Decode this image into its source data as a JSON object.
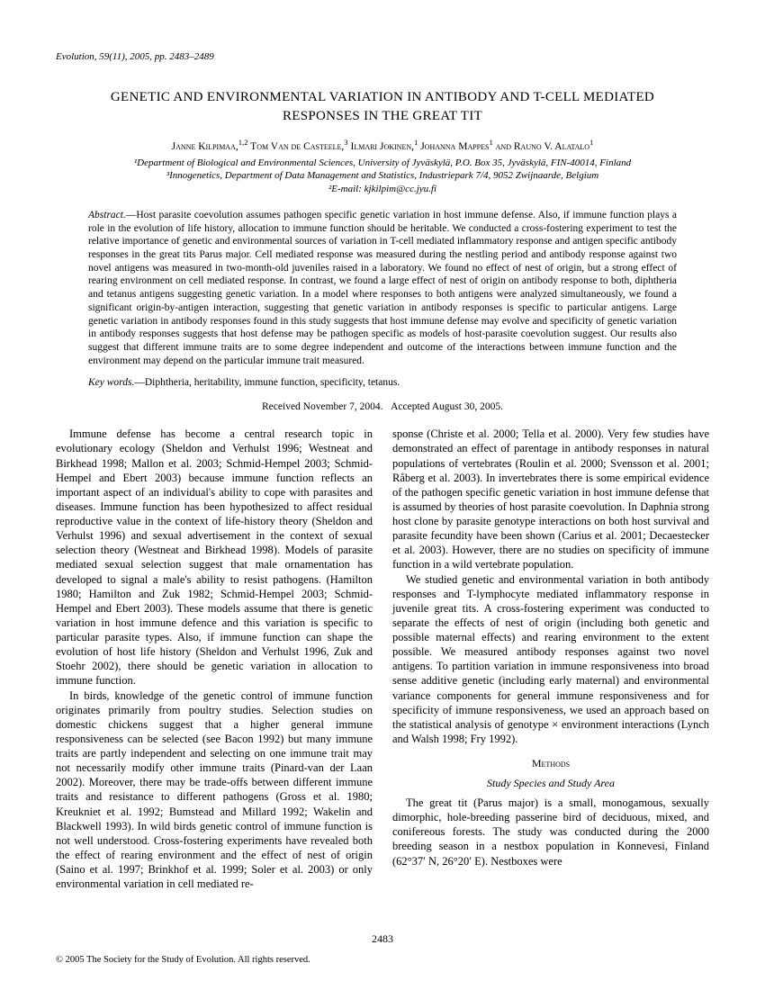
{
  "journal_citation": "Evolution, 59(11), 2005, pp. 2483–2489",
  "title": "GENETIC AND ENVIRONMENTAL VARIATION IN ANTIBODY AND T-CELL MEDIATED RESPONSES IN THE GREAT TIT",
  "authors_html": "J<span class='sc'>anne</span> K<span class='sc'>ilpimaa</span>,<sup>1,2</sup> T<span class='sc'>om</span> V<span class='sc'>an de</span> C<span class='sc'>asteele</span>,<sup>3</sup> I<span class='sc'>lmari</span> J<span class='sc'>okinen</span>,<sup>1</sup> J<span class='sc'>ohanna</span> M<span class='sc'>appes</span><sup>1</sup> <span class='sc'>and</span> R<span class='sc'>auno</span> V. A<span class='sc'>latalo</span><sup>1</sup>",
  "affil1": "¹Department of Biological and Environmental Sciences, University of Jyväskylä, P.O. Box 35, Jyväskylä, FIN-40014, Finland",
  "affil2": "³Innogenetics, Department of Data Management and Statistics, Industriepark 7/4, 9052 Zwijnaarde, Belgium",
  "affil3": "²E-mail: kjkilpim@cc.jyu.fi",
  "abstract_lead": "Abstract.",
  "abstract_body": "—Host parasite coevolution assumes pathogen specific genetic variation in host immune defense. Also, if immune function plays a role in the evolution of life history, allocation to immune function should be heritable. We conducted a cross-fostering experiment to test the relative importance of genetic and environmental sources of variation in T-cell mediated inflammatory response and antigen specific antibody responses in the great tits Parus major. Cell mediated response was measured during the nestling period and antibody response against two novel antigens was measured in two-month-old juveniles raised in a laboratory. We found no effect of nest of origin, but a strong effect of rearing environment on cell mediated response. In contrast, we found a large effect of nest of origin on antibody response to both, diphtheria and tetanus antigens suggesting genetic variation. In a model where responses to both antigens were analyzed simultaneously, we found a significant origin-by-antigen interaction, suggesting that genetic variation in antibody responses is specific to particular antigens. Large genetic variation in antibody responses found in this study suggests that host immune defense may evolve and specificity of genetic variation in antibody responses suggests that host defense may be pathogen specific as models of host-parasite coevolution suggest. Our results also suggest that different immune traits are to some degree independent and outcome of the interactions between immune function and the environment may depend on the particular immune trait measured.",
  "keywords_lead": "Key words.",
  "keywords_body": "—Diphtheria, heritability, immune function, specificity, tetanus.",
  "received": "Received November 7, 2004.",
  "accepted": "Accepted August 30, 2005.",
  "body": {
    "p1": "Immune defense has become a central research topic in evolutionary ecology (Sheldon and Verhulst 1996; Westneat and Birkhead 1998; Mallon et al. 2003; Schmid-Hempel 2003; Schmid-Hempel and Ebert 2003) because immune function reflects an important aspect of an individual's ability to cope with parasites and diseases. Immune function has been hypothesized to affect residual reproductive value in the context of life-history theory (Sheldon and Verhulst 1996) and sexual advertisement in the context of sexual selection theory (Westneat and Birkhead 1998). Models of parasite mediated sexual selection suggest that male ornamentation has developed to signal a male's ability to resist pathogens. (Hamilton 1980; Hamilton and Zuk 1982; Schmid-Hempel 2003; Schmid-Hempel and Ebert 2003). These models assume that there is genetic variation in host immune defence and this variation is specific to particular parasite types. Also, if immune function can shape the evolution of host life history (Sheldon and Verhulst 1996, Zuk and Stoehr 2002), there should be genetic variation in allocation to immune function.",
    "p2": "In birds, knowledge of the genetic control of immune function originates primarily from poultry studies. Selection studies on domestic chickens suggest that a higher general immune responsiveness can be selected (see Bacon 1992) but many immune traits are partly independent and selecting on one immune trait may not necessarily modify other immune traits (Pinard-van der Laan 2002). Moreover, there may be trade-offs between different immune traits and resistance to different pathogens (Gross et al. 1980; Kreukniet et al. 1992; Bumstead and Millard 1992; Wakelin and Blackwell 1993). In wild birds genetic control of immune function is not well understood. Cross-fostering experiments have revealed both the effect of rearing environment and the effect of nest of origin (Saino et al. 1997; Brinkhof et al. 1999; Soler et al. 2003) or only environmental variation in cell mediated re-",
    "p3": "sponse (Christe et al. 2000; Tella et al. 2000). Very few studies have demonstrated an effect of parentage in antibody responses in natural populations of vertebrates (Roulin et al. 2000; Svensson et al. 2001; Råberg et al. 2003). In invertebrates there is some empirical evidence of the pathogen specific genetic variation in host immune defense that is assumed by theories of host parasite coevolution. In Daphnia strong host clone by parasite genotype interactions on both host survival and parasite fecundity have been shown (Carius et al. 2001; Decaestecker et al. 2003). However, there are no studies on specificity of immune function in a wild vertebrate population.",
    "p4": "We studied genetic and environmental variation in both antibody responses and T-lymphocyte mediated inflammatory response in juvenile great tits. A cross-fostering experiment was conducted to separate the effects of nest of origin (including both genetic and possible maternal effects) and rearing environment to the extent possible. We measured antibody responses against two novel antigens. To partition variation in immune responsiveness into broad sense additive genetic (including early maternal) and environmental variance components for general immune responsiveness and for specificity of immune responsiveness, we used an approach based on the statistical analysis of genotype × environment interactions (Lynch and Walsh 1998; Fry 1992).",
    "methods_head": "Methods",
    "subsec1": "Study Species and Study Area",
    "p5": "The great tit (Parus major) is a small, monogamous, sexually dimorphic, hole-breeding passerine bird of deciduous, mixed, and conifereous forests. The study was conducted during the 2000 breeding season in a nestbox population in Konnevesi, Finland (62°37′ N, 26°20′ E). Nestboxes were"
  },
  "page_number": "2483",
  "copyright": "© 2005 The Society for the Study of Evolution. All rights reserved."
}
